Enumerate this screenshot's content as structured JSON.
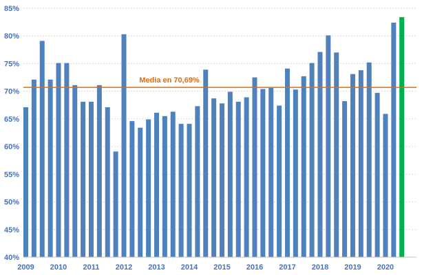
{
  "chart_data": {
    "type": "bar",
    "title": "",
    "xlabel": "",
    "ylabel": "",
    "ylim": [
      40,
      85
    ],
    "y_ticks": [
      "40%",
      "45%",
      "50%",
      "55%",
      "60%",
      "65%",
      "70%",
      "75%",
      "80%",
      "85%"
    ],
    "y_tick_values": [
      40,
      45,
      50,
      55,
      60,
      65,
      70,
      75,
      80,
      85
    ],
    "x_tick_labels": [
      "2009",
      "2010",
      "2011",
      "2012",
      "2013",
      "2014",
      "2015",
      "2016",
      "2017",
      "2018",
      "2019",
      "2020"
    ],
    "grid": true,
    "bar_color": "#4f81bd",
    "highlight_color": "#00b050",
    "highlight_index": 46,
    "values": [
      67.1,
      72.1,
      79.1,
      72.1,
      75.1,
      75.1,
      71.1,
      68.1,
      68.1,
      71.1,
      67.1,
      59.1,
      80.3,
      64.6,
      63.4,
      64.9,
      66.1,
      65.5,
      66.3,
      64.1,
      64.1,
      67.3,
      73.9,
      68.7,
      67.8,
      69.9,
      68.1,
      68.9,
      72.5,
      70.4,
      70.6,
      67.4,
      74.1,
      70.3,
      72.7,
      75.1,
      77.1,
      80.1,
      77.0,
      68.2,
      73.1,
      73.8,
      75.2,
      69.7,
      65.9,
      82.4,
      83.4
    ],
    "reference_line": {
      "value": 70.69,
      "label": "Media en 70,69%",
      "color": "#e46c0a"
    }
  }
}
